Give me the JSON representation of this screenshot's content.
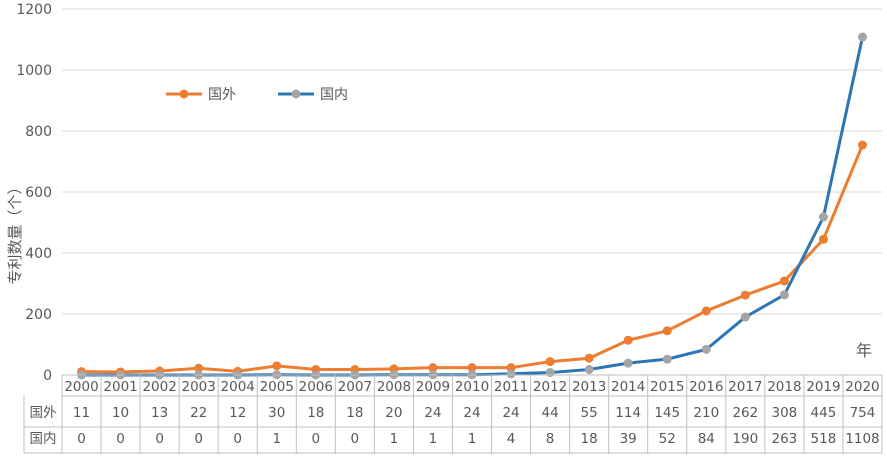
{
  "chart_data": {
    "type": "line",
    "title": "",
    "ylabel": "专利数量（个）",
    "xlabel": "年",
    "ylim": [
      0,
      1200
    ],
    "yticks": [
      0,
      200,
      400,
      600,
      800,
      1000,
      1200
    ],
    "grid": true,
    "legend_position": "top-left",
    "categories": [
      "2000",
      "2001",
      "2002",
      "2003",
      "2004",
      "2005",
      "2006",
      "2007",
      "2008",
      "2009",
      "2010",
      "2011",
      "2012",
      "2013",
      "2014",
      "2015",
      "2016",
      "2017",
      "2018",
      "2019",
      "2020"
    ],
    "series": [
      {
        "name": "国外",
        "color": "#ED7D31",
        "marker_color": "#ED7D31",
        "values": [
          11,
          10,
          13,
          22,
          12,
          30,
          18,
          18,
          20,
          24,
          24,
          24,
          44,
          55,
          114,
          145,
          210,
          262,
          308,
          445,
          754
        ]
      },
      {
        "name": "国内",
        "color": "#2E75B6",
        "marker_color": "#A5A5A5",
        "values": [
          0,
          0,
          0,
          0,
          0,
          1,
          0,
          0,
          1,
          1,
          1,
          4,
          8,
          18,
          39,
          52,
          84,
          190,
          263,
          518,
          1108
        ]
      }
    ],
    "table": {
      "row_labels": [
        "国外",
        "国内"
      ]
    }
  }
}
